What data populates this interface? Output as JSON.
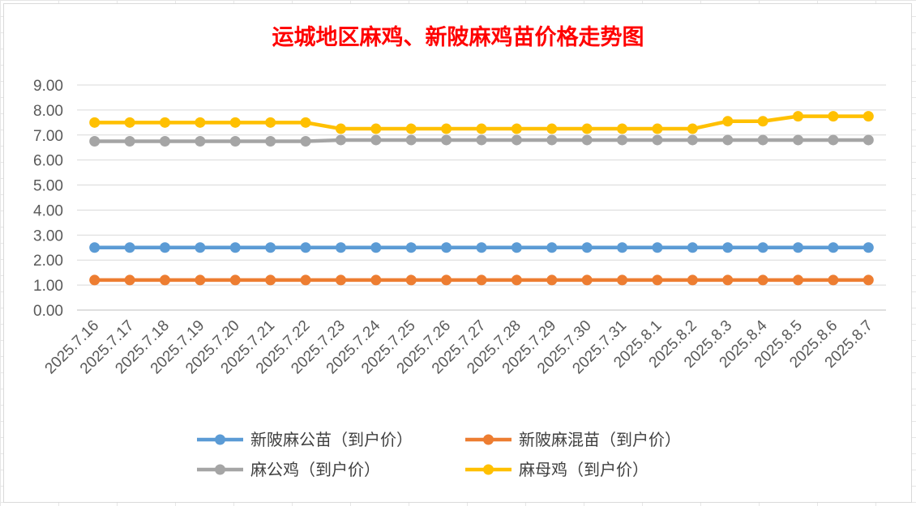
{
  "chart_data": {
    "type": "line",
    "title": "运城地区麻鸡、新陂麻鸡苗价格走势图",
    "xlabel": "",
    "ylabel": "",
    "ylim": [
      0,
      9
    ],
    "yticks": [
      "0.00",
      "1.00",
      "2.00",
      "3.00",
      "4.00",
      "5.00",
      "6.00",
      "7.00",
      "8.00",
      "9.00"
    ],
    "grid": true,
    "legend_position": "bottom",
    "categories": [
      "2025.7.16",
      "2025.7.17",
      "2025.7.18",
      "2025.7.19",
      "2025.7.20",
      "2025.7.21",
      "2025.7.22",
      "2025.7.23",
      "2025.7.24",
      "2025.7.25",
      "2025.7.26",
      "2025.7.27",
      "2025.7.28",
      "2025.7.29",
      "2025.7.30",
      "2025.7.31",
      "2025.8.1",
      "2025.8.2",
      "2025.8.3",
      "2025.8.4",
      "2025.8.5",
      "2025.8.6",
      "2025.8.7"
    ],
    "series": [
      {
        "name": "新陂麻公苗（到户价）",
        "color": "#5b9bd5",
        "values": [
          2.5,
          2.5,
          2.5,
          2.5,
          2.5,
          2.5,
          2.5,
          2.5,
          2.5,
          2.5,
          2.5,
          2.5,
          2.5,
          2.5,
          2.5,
          2.5,
          2.5,
          2.5,
          2.5,
          2.5,
          2.5,
          2.5,
          2.5
        ]
      },
      {
        "name": "新陂麻混苗（到户价）",
        "color": "#ed7d31",
        "values": [
          1.2,
          1.2,
          1.2,
          1.2,
          1.2,
          1.2,
          1.2,
          1.2,
          1.2,
          1.2,
          1.2,
          1.2,
          1.2,
          1.2,
          1.2,
          1.2,
          1.2,
          1.2,
          1.2,
          1.2,
          1.2,
          1.2,
          1.2
        ]
      },
      {
        "name": "麻公鸡（到户价）",
        "color": "#a5a5a5",
        "values": [
          6.75,
          6.75,
          6.75,
          6.75,
          6.75,
          6.75,
          6.75,
          6.8,
          6.8,
          6.8,
          6.8,
          6.8,
          6.8,
          6.8,
          6.8,
          6.8,
          6.8,
          6.8,
          6.8,
          6.8,
          6.8,
          6.8,
          6.8
        ]
      },
      {
        "name": "麻母鸡（到户价）",
        "color": "#ffc000",
        "values": [
          7.5,
          7.5,
          7.5,
          7.5,
          7.5,
          7.5,
          7.5,
          7.25,
          7.25,
          7.25,
          7.25,
          7.25,
          7.25,
          7.25,
          7.25,
          7.25,
          7.25,
          7.25,
          7.55,
          7.55,
          7.75,
          7.75,
          7.75
        ]
      }
    ]
  }
}
